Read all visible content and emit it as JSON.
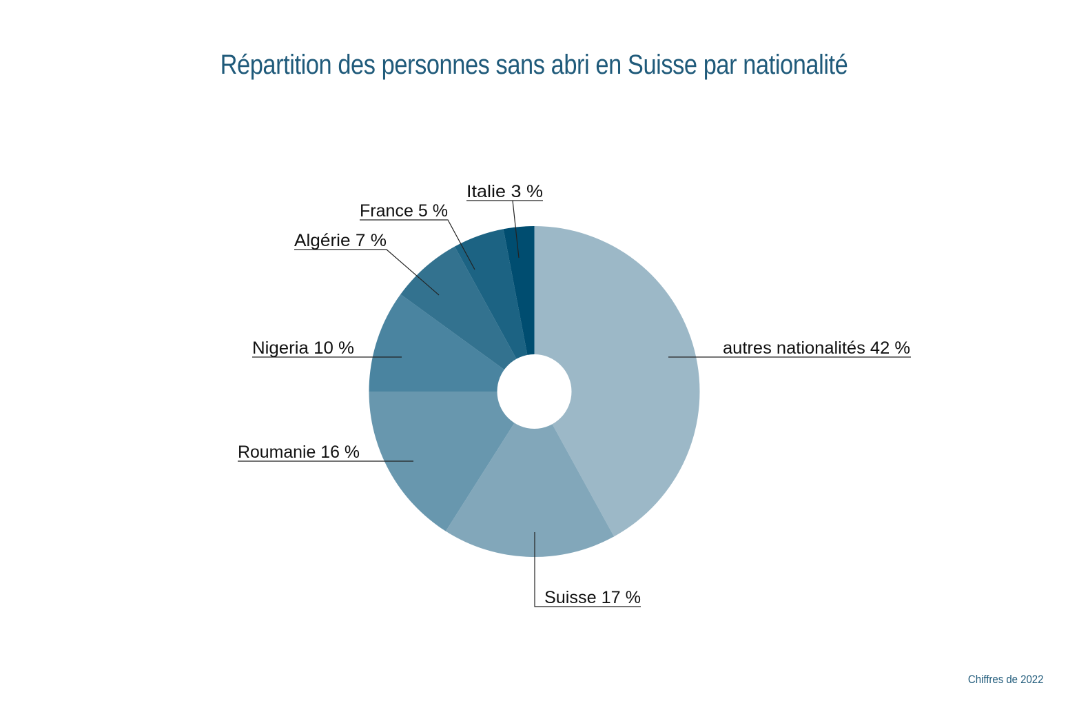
{
  "title": "Répartition des personnes sans abri en Suisse par nationalité",
  "footnote": "Chiffres de 2022",
  "chart_data": {
    "type": "pie",
    "subtype": "donut",
    "title": "Répartition des personnes sans abri en Suisse par nationalité",
    "categories": [
      "autres nationalités",
      "Suisse",
      "Roumanie",
      "Nigeria",
      "Algérie",
      "France",
      "Italie"
    ],
    "values": [
      42,
      17,
      16,
      10,
      7,
      5,
      3
    ],
    "unit": "%",
    "colors": [
      "#9cb8c7",
      "#82a7ba",
      "#6897ae",
      "#4a84a0",
      "#33728f",
      "#1c6383",
      "#004d70"
    ],
    "labels": [
      "autres nationalités  42 %",
      "Suisse  17 %",
      "Roumanie  16 %",
      "Nigeria  10 %",
      "Algérie  7 %",
      "France  5 %",
      "Italie  3 %"
    ],
    "start_angle": "12 o'clock, clockwise",
    "annotation": "Chiffres de 2022",
    "legend": "none (leader-line labels)"
  }
}
